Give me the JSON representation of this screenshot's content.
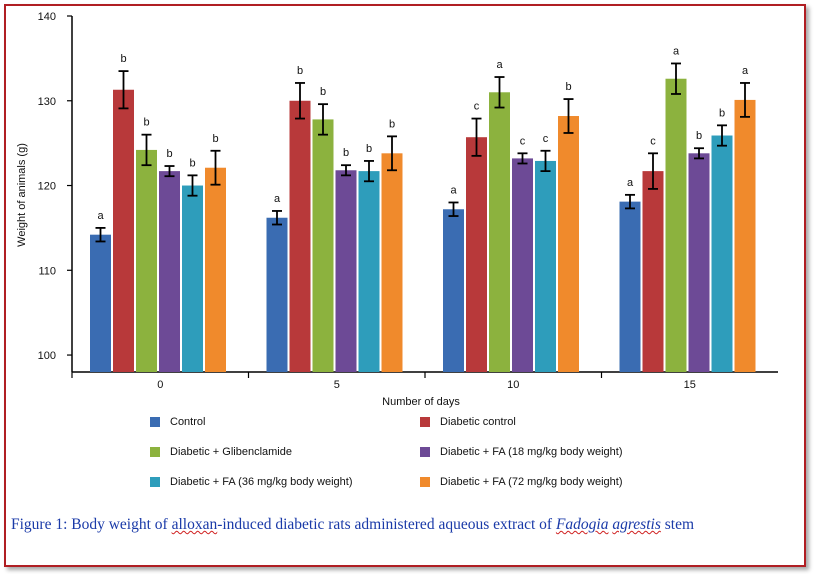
{
  "chart_data": {
    "type": "bar",
    "categories": [
      "0",
      "5",
      "10",
      "15"
    ],
    "xlabel": "Number of days",
    "ylabel": "Weight of animals (g)",
    "ylim": [
      98,
      140
    ],
    "yticks": [
      100,
      110,
      120,
      130,
      140
    ],
    "series": [
      {
        "name": "Control",
        "color": "#3a6cb2",
        "values": [
          114.2,
          116.2,
          117.2,
          118.1
        ],
        "errors": [
          0.8,
          0.8,
          0.8,
          0.8
        ],
        "letters": [
          "a",
          "a",
          "a",
          "a"
        ]
      },
      {
        "name": "Diabetic control",
        "color": "#b8393a",
        "values": [
          131.3,
          130.0,
          125.7,
          121.7
        ],
        "errors": [
          2.2,
          2.1,
          2.2,
          2.1
        ],
        "letters": [
          "b",
          "b",
          "c",
          "c"
        ]
      },
      {
        "name": "Diabetic + Glibenclamide",
        "color": "#8cb23e",
        "values": [
          124.2,
          127.8,
          131.0,
          132.6
        ],
        "errors": [
          1.8,
          1.8,
          1.8,
          1.8
        ],
        "letters": [
          "b",
          "b",
          "a",
          "a"
        ]
      },
      {
        "name": "Diabetic + FA (18 mg/kg body weight)",
        "color": "#6d4a96",
        "values": [
          121.7,
          121.8,
          123.2,
          123.8
        ],
        "errors": [
          0.6,
          0.6,
          0.6,
          0.6
        ],
        "letters": [
          "b",
          "b",
          "c",
          "b"
        ]
      },
      {
        "name": "Diabetic + FA (36 mg/kg body weight)",
        "color": "#2e9dbb",
        "values": [
          120.0,
          121.7,
          122.9,
          125.9
        ],
        "errors": [
          1.2,
          1.2,
          1.2,
          1.2
        ],
        "letters": [
          "b",
          "b",
          "c",
          "b"
        ]
      },
      {
        "name": "Diabetic + FA (72 mg/kg body weight)",
        "color": "#f08a2c",
        "values": [
          122.1,
          123.8,
          128.2,
          130.1
        ],
        "errors": [
          2.0,
          2.0,
          2.0,
          2.0
        ],
        "letters": [
          "b",
          "b",
          "b",
          "a"
        ]
      }
    ]
  },
  "caption": {
    "prefix": "Figure 1: Body weight of ",
    "alloxan": "alloxan",
    "middle": "-induced diabetic rats administered aqueous extract of ",
    "species_genus": "Fadogia",
    "space": " ",
    "species_epithet": "agrestis",
    "suffix": " stem"
  }
}
